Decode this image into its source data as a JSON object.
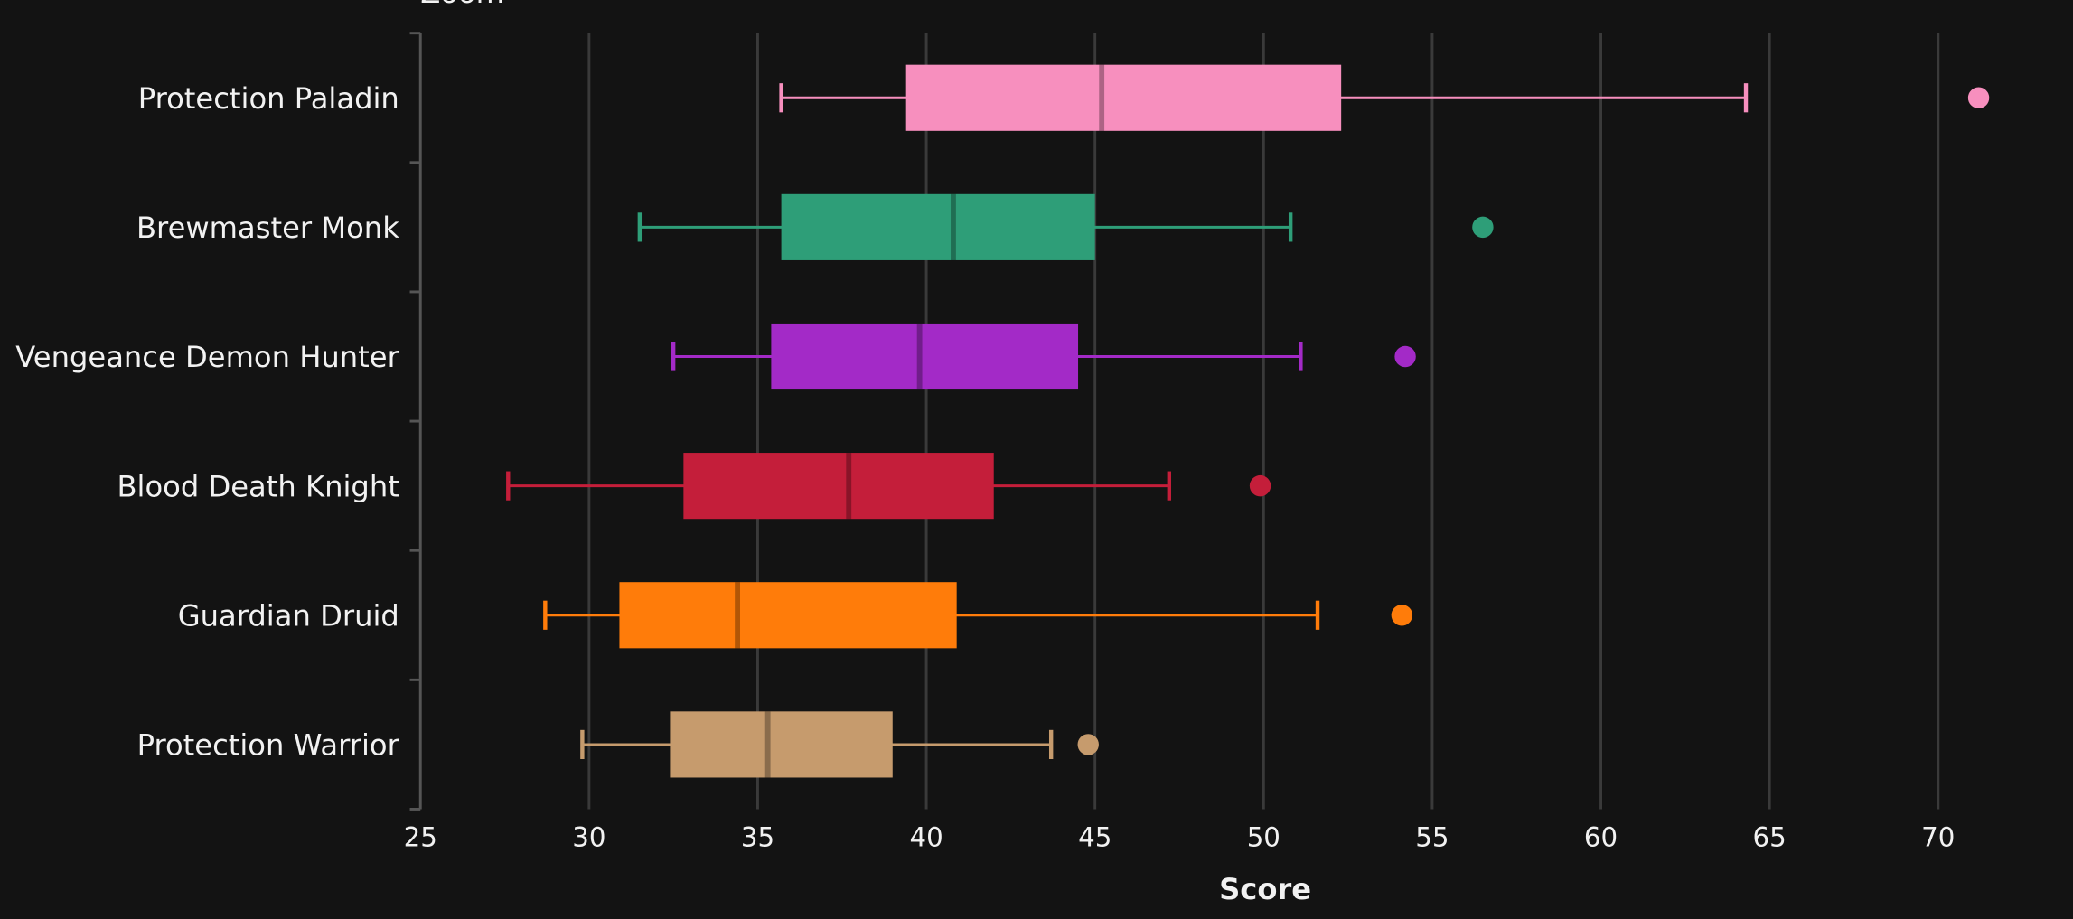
{
  "chart_data": {
    "type": "box",
    "zoom_label": "Zoom",
    "xlabel": "Score",
    "categories": [
      "Protection Paladin",
      "Brewmaster Monk",
      "Vengeance Demon Hunter",
      "Blood Death Knight",
      "Guardian Druid",
      "Protection Warrior"
    ],
    "colors": [
      "#f78fbe",
      "#2e9e78",
      "#a32ac7",
      "#c41e3a",
      "#ff7c0a",
      "#c69b6d"
    ],
    "whisker_low": [
      35.7,
      31.5,
      32.5,
      27.6,
      28.7,
      29.8
    ],
    "q1": [
      39.4,
      35.7,
      35.4,
      32.8,
      30.9,
      32.4
    ],
    "median": [
      45.2,
      40.8,
      39.8,
      37.7,
      34.4,
      35.3
    ],
    "q3": [
      52.3,
      45.0,
      44.5,
      42.0,
      40.9,
      39.0
    ],
    "whisker_high": [
      64.3,
      50.8,
      51.1,
      47.2,
      51.6,
      43.7
    ],
    "outliers": [
      [
        71.2
      ],
      [
        56.5
      ],
      [
        54.2
      ],
      [
        49.9
      ],
      [
        54.1
      ],
      [
        44.8
      ]
    ],
    "xlim": [
      25,
      73
    ],
    "xticks": [
      25,
      30,
      35,
      40,
      45,
      50,
      55,
      60,
      65,
      70
    ],
    "grid": true
  }
}
